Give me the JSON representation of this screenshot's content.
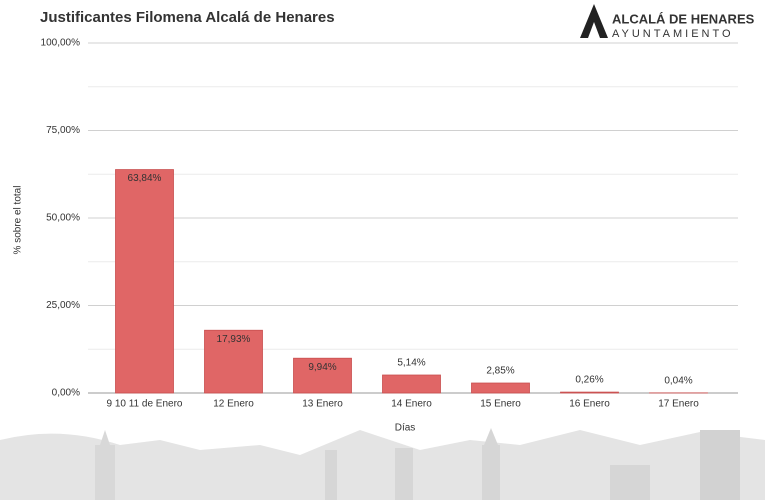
{
  "chart_data": {
    "type": "bar",
    "title": "Justificantes Filomena Alcalá de Henares",
    "xlabel": "Días",
    "ylabel": "% sobre el total",
    "categories": [
      "9 10 11 de Enero",
      "12 Enero",
      "13 Enero",
      "14 Enero",
      "15 Enero",
      "16 Enero",
      "17 Enero"
    ],
    "values": [
      63.84,
      17.93,
      9.94,
      5.14,
      2.85,
      0.26,
      0.04
    ],
    "value_labels": [
      "63,84%",
      "17,93%",
      "9,94%",
      "5,14%",
      "2,85%",
      "0,26%",
      "0,04%"
    ],
    "color": "#e06666",
    "ylim": [
      0,
      100
    ],
    "yticks": [
      {
        "value": 0,
        "label": "0,00%"
      },
      {
        "value": 25,
        "label": "25,00%"
      },
      {
        "value": 50,
        "label": "50,00%"
      },
      {
        "value": 75,
        "label": "75,00%"
      },
      {
        "value": 100,
        "label": "100,00%"
      }
    ],
    "minor_yticks": [
      12.5,
      37.5,
      62.5,
      87.5
    ],
    "grid": true
  },
  "logo": {
    "name": "ALCALÁ DE HENARES",
    "subtitle": "AYUNTAMIENTO"
  }
}
